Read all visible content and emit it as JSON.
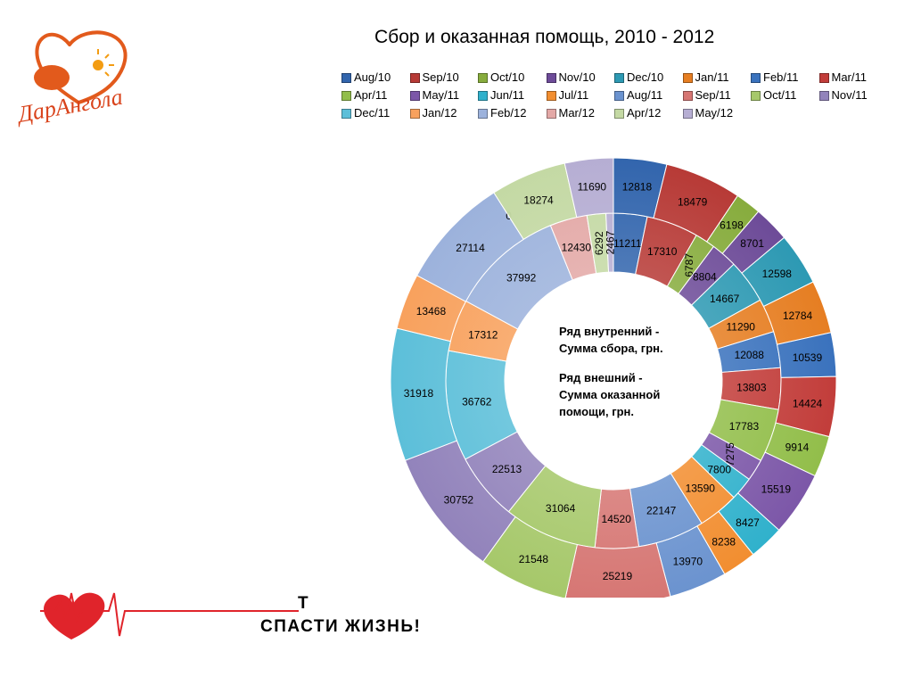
{
  "logo": {
    "text": "ДарАнгола"
  },
  "slogan": {
    "line1": "Т",
    "line2": "СПАСТИ ЖИЗНЬ!"
  },
  "note": {
    "inner_line1": "Ряд внутренний -",
    "inner_line2": "Сумма сбора, грн.",
    "outer_line1": "Ряд внешний -",
    "outer_line2": "Сумма оказанной",
    "outer_line3": "помощи, грн."
  },
  "chart_data": {
    "type": "donut",
    "title": "Сбор и оказанная помощь, 2010 - 2012",
    "legend_placement": "top",
    "categories": [
      "Aug/10",
      "Sep/10",
      "Oct/10",
      "Nov/10",
      "Dec/10",
      "Jan/11",
      "Feb/11",
      "Mar/11",
      "Apr/11",
      "May/11",
      "Jun/11",
      "Jul/11",
      "Aug/11",
      "Sep/11",
      "Oct/11",
      "Nov/11",
      "Dec/11",
      "Jan/12",
      "Feb/12",
      "Mar/12",
      "Apr/12",
      "May/12"
    ],
    "colors": [
      "#3265ad",
      "#b73a36",
      "#87ac3d",
      "#6d4b98",
      "#2d99b3",
      "#e67e22",
      "#3a72bd",
      "#c23d3a",
      "#92be4a",
      "#7c57a8",
      "#30b1cc",
      "#f28e30",
      "#6b93cf",
      "#d67673",
      "#a6c86a",
      "#9283bb",
      "#5cbfd9",
      "#f8a15d",
      "#9cb2dc",
      "#e3a8a6",
      "#c4d9a4",
      "#b6aed3"
    ],
    "series": [
      {
        "name": "Ряд внутренний - Сумма сбора, грн.",
        "values": [
          11211,
          17310,
          6787,
          8804,
          14667,
          11290,
          12088,
          13803,
          17783,
          7275,
          7800,
          13590,
          22147,
          14520,
          31064,
          22513,
          36762,
          17312,
          37992,
          12430,
          6292,
          2467
        ]
      },
      {
        "name": "Ряд внешний - Сумма оказанной помощи, грн.",
        "values": [
          12818,
          18479,
          6198,
          8701,
          12598,
          12784,
          10539,
          14424,
          9914,
          15519,
          8427,
          8238,
          13970,
          25219,
          21548,
          30752,
          31918,
          13468,
          27114,
          0,
          18274,
          11690
        ]
      }
    ],
    "value_labels": {
      "inner": [
        "11211",
        "17310",
        "6787",
        "8804",
        "14667",
        "11290",
        "12088",
        "13803",
        "17783",
        "7275",
        "7800",
        "13590",
        "22147",
        "14520",
        "31064",
        "22513",
        "36762",
        "17312",
        "37992",
        "12430",
        "6292",
        "2467"
      ],
      "outer": [
        "12818",
        "18479",
        "6198",
        "8701",
        "12598",
        "12784",
        "10539",
        "14424",
        "9914",
        "15519",
        "8427",
        "8238",
        "13970",
        "25219",
        "21548",
        "30752",
        "31918",
        "13468",
        "27114",
        "0",
        "18274",
        "11690"
      ]
    }
  }
}
